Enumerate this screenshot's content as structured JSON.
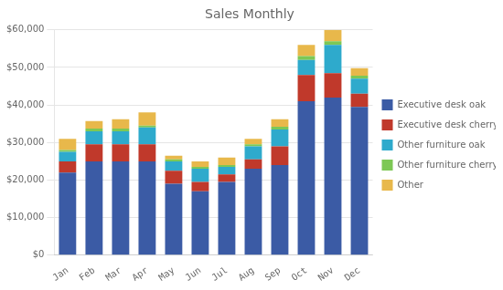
{
  "chart_data": {
    "type": "bar",
    "title": "Sales Monthly",
    "categories": [
      "Jan",
      "Feb",
      "Mar",
      "Apr",
      "May",
      "Jun",
      "Jul",
      "Aug",
      "Sep",
      "Oct",
      "Nov",
      "Dec"
    ],
    "series": [
      {
        "name": "Executive desk oak",
        "color": "#3B5BA5",
        "values": [
          22000,
          25000,
          25000,
          25000,
          19000,
          17000,
          19500,
          23000,
          24000,
          41000,
          42000,
          39500
        ]
      },
      {
        "name": "Executive desk cherry",
        "color": "#C0392B",
        "values": [
          3000,
          4500,
          4500,
          4500,
          3500,
          2500,
          2000,
          2500,
          5000,
          7000,
          6500,
          3500
        ]
      },
      {
        "name": "Other furniture oak",
        "color": "#2EAACC",
        "values": [
          2500,
          3500,
          3500,
          4500,
          2500,
          3500,
          2000,
          3500,
          4500,
          4000,
          7500,
          4000
        ]
      },
      {
        "name": "Other furniture cherry",
        "color": "#7DC855",
        "values": [
          500,
          700,
          700,
          500,
          500,
          500,
          500,
          500,
          700,
          1000,
          1000,
          800
        ]
      },
      {
        "name": "Other",
        "color": "#E8B84B",
        "values": [
          3000,
          2000,
          2500,
          3500,
          1000,
          1500,
          2000,
          1500,
          2000,
          3000,
          3000,
          2000
        ]
      }
    ],
    "stacked": true,
    "ylim": [
      0,
      60000
    ],
    "yticks": [
      {
        "value": 0,
        "label": "$0"
      },
      {
        "value": 10000,
        "label": "$10,000"
      },
      {
        "value": 20000,
        "label": "$20,000"
      },
      {
        "value": 30000,
        "label": "$30,000"
      },
      {
        "value": 40000,
        "label": "$40,000"
      },
      {
        "value": 50000,
        "label": "$50,000"
      },
      {
        "value": 60000,
        "label": "$60,000"
      }
    ],
    "grid": true,
    "legend": "right"
  }
}
